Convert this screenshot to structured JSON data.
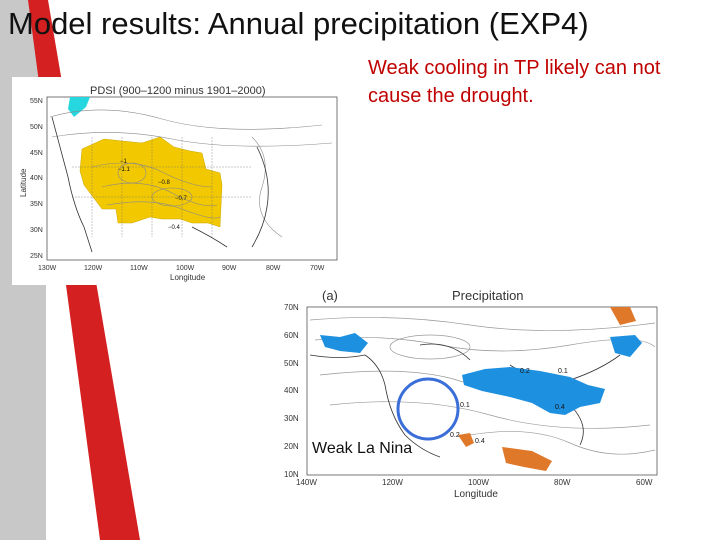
{
  "slide": {
    "title": "Model results: Annual precipitation (EXP4)",
    "annotation": "Weak cooling in TP likely can not cause the drought.",
    "callout": "Weak La Nina"
  },
  "map1": {
    "title": "PDSI (900–1200 minus 1901–2000)",
    "ylabel": "Latitude",
    "xlabel": "Longitude",
    "yticks": [
      "55N",
      "50N",
      "45N",
      "40N",
      "35N",
      "30N",
      "25N"
    ],
    "xticks": [
      "130W",
      "120W",
      "110W",
      "100W",
      "90W",
      "80W",
      "70W"
    ],
    "contour_labels": [
      "−1",
      "−1.1",
      "−0.8",
      "−0.7",
      "−0.4"
    ]
  },
  "map2": {
    "panel_label": "(a)",
    "title": "Precipitation",
    "xlabel": "Longitude",
    "yticks": [
      "70N",
      "60N",
      "50N",
      "40N",
      "30N",
      "20N",
      "10N"
    ],
    "xticks": [
      "140W",
      "120W",
      "100W",
      "80W",
      "60W"
    ],
    "contour_labels": [
      "0.2",
      "0.1",
      "0.4",
      "0.1",
      "0.2",
      "0.4"
    ]
  },
  "colors": {
    "accent_red": "#c00000",
    "drought_fill": "#f2c800",
    "wet_fill": "#1e90e0",
    "dry_fill": "#e0782a",
    "circle": "#3a6ed8"
  }
}
